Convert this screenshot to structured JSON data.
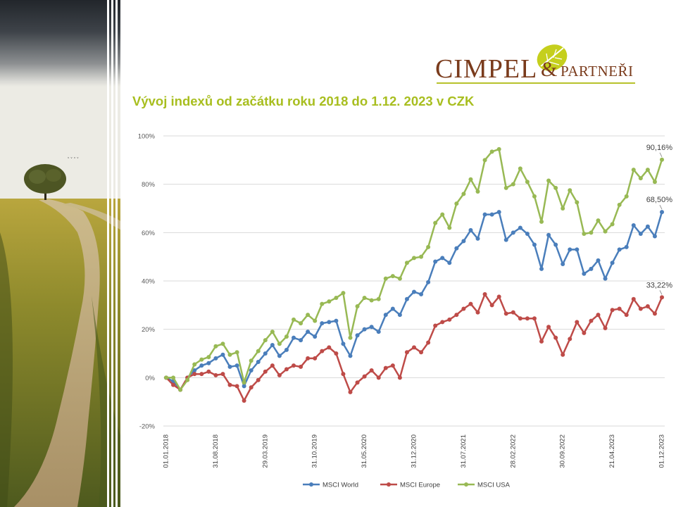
{
  "brand": {
    "logo_text_main": "CIMPEL",
    "logo_amp": "&",
    "logo_text_partners": "PARTNEŘI",
    "brown": "#7a3b1c",
    "green": "#b7c22b"
  },
  "slide": {
    "title": "Vývoj indexů od začátku roku 2018 do 1.12. 2023 v CZK",
    "title_color": "#a8be1f"
  },
  "chart_data": {
    "type": "line",
    "title": "",
    "xlabel": "",
    "ylabel": "",
    "ylim": [
      -20,
      100
    ],
    "yticks": [
      -20,
      0,
      20,
      40,
      60,
      80,
      100
    ],
    "ytick_labels": [
      "-20%",
      "0%",
      "20%",
      "40%",
      "60%",
      "80%",
      "100%"
    ],
    "grid": true,
    "legend_position": "bottom",
    "x_tick_labels": [
      "01.01.2018",
      "31.08.2018",
      "29.03.2019",
      "31.10.2019",
      "31.05.2020",
      "31.12.2020",
      "31.07.2021",
      "28.02.2022",
      "30.09.2022",
      "21.04.2023",
      "01.12.2023"
    ],
    "series": [
      {
        "name": "MSCI World",
        "color": "#4a7ebb",
        "values": [
          0,
          -1.5,
          -5,
          0,
          3,
          5,
          6,
          8,
          9.5,
          4.5,
          5,
          -3.5,
          3,
          6.5,
          10,
          13.5,
          9,
          11.5,
          16.5,
          15.5,
          19,
          17,
          22.5,
          23,
          23.5,
          14,
          9,
          17.5,
          20,
          21,
          19,
          26,
          28.5,
          26,
          32.5,
          35.5,
          34.5,
          39.5,
          48,
          49.5,
          47.5,
          53.5,
          56.5,
          61,
          57.5,
          67.5,
          67.5,
          68.5,
          57,
          60,
          62,
          59.5,
          55,
          45,
          59,
          55,
          47,
          53,
          53,
          43,
          45,
          48.5,
          41,
          47.5,
          53,
          54,
          63,
          59.5,
          62.5,
          58.5,
          68.5
        ],
        "end_label": "68,50%"
      },
      {
        "name": "MSCI Europe",
        "color": "#be4b48",
        "values": [
          0,
          -3,
          -5,
          0,
          1.5,
          1.5,
          2.5,
          1,
          1.5,
          -3,
          -3.5,
          -9.5,
          -4,
          -1,
          2.5,
          5,
          1,
          3.5,
          5,
          4.5,
          8,
          8,
          11,
          12.5,
          10,
          1.5,
          -6,
          -2,
          0.5,
          3,
          0,
          4,
          5,
          0,
          10.5,
          12.5,
          10.5,
          14.5,
          21.5,
          23,
          24,
          26,
          28.5,
          30.5,
          27,
          34.5,
          30,
          33.5,
          26.5,
          27,
          24.5,
          24.5,
          24.5,
          15,
          21,
          16.5,
          9.5,
          16,
          23,
          18.5,
          23.5,
          26,
          20.5,
          28,
          28.5,
          26,
          32.5,
          28.5,
          29.5,
          26.5,
          33.22
        ],
        "end_label": "33,22%"
      },
      {
        "name": "MSCI USA",
        "color": "#98b954",
        "values": [
          0,
          0,
          -5,
          -1,
          5.5,
          7.5,
          8.5,
          13,
          14,
          9.5,
          10.5,
          -2,
          7,
          11,
          15.5,
          19,
          14,
          17,
          24,
          22.5,
          26,
          23.5,
          30.5,
          31.5,
          33,
          35,
          16.5,
          29.5,
          33,
          32,
          32.5,
          41,
          42,
          41,
          47.5,
          49.5,
          50,
          54,
          64,
          67.5,
          62,
          72,
          76,
          82,
          77,
          90,
          93.5,
          94.5,
          78.5,
          80,
          86.5,
          81,
          75,
          64.5,
          81.5,
          78.5,
          70,
          77.5,
          72.5,
          59.5,
          60,
          65,
          60.5,
          63.5,
          71.5,
          75,
          86,
          82.5,
          86,
          81,
          90.16
        ],
        "end_label": "90,16%"
      }
    ]
  }
}
